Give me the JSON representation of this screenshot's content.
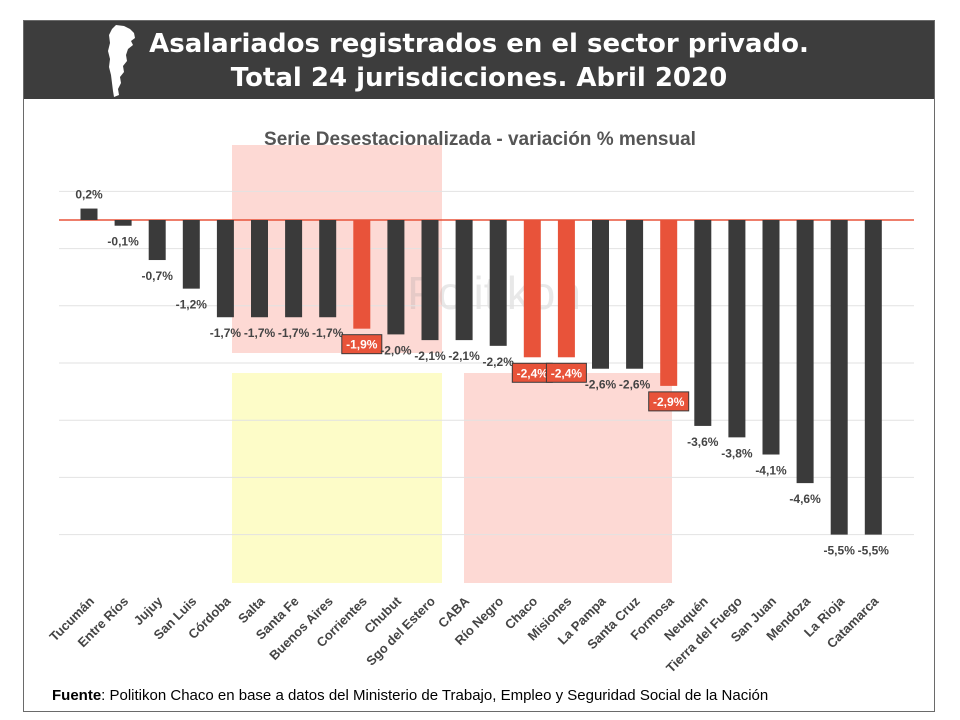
{
  "header": {
    "title_line1": "Asalariados registrados en el sector privado.",
    "title_line2": "Total 24 jurisdicciones. Abril 2020",
    "map_icon": "argentina-map-icon"
  },
  "watermark": "Politikon",
  "source": {
    "label": "Fuente",
    "text": ": Politikon Chaco en base a datos del Ministerio de Trabajo, Empleo y Seguridad Social de la Nación"
  },
  "colors": {
    "bar_default": "#3a3a3a",
    "bar_highlight": "#e8533a",
    "zero_line": "#e8533a",
    "pink_box": "#fdd9d4",
    "yellow_box": "#fdfcc8",
    "header_bg": "#3d3d3d"
  },
  "chart_data": {
    "type": "bar",
    "title": "Serie Desestacionalizada - variación % mensual",
    "xlabel": "",
    "ylabel": "",
    "categories": [
      "Tucumán",
      "Entre Ríos",
      "Jujuy",
      "San Luis",
      "Córdoba",
      "Salta",
      "Santa Fe",
      "Buenos Aires",
      "Corrientes",
      "Chubut",
      "Sgo del Estero",
      "CABA",
      "Río Negro",
      "Chaco",
      "Misiones",
      "La Pampa",
      "Santa Cruz",
      "Formosa",
      "Neuquén",
      "Tierra del Fuego",
      "San Juan",
      "Mendoza",
      "La Rioja",
      "Catamarca"
    ],
    "values": [
      0.2,
      -0.1,
      -0.7,
      -1.2,
      -1.7,
      -1.7,
      -1.7,
      -1.7,
      -1.9,
      -2.0,
      -2.1,
      -2.1,
      -2.2,
      -2.4,
      -2.4,
      -2.6,
      -2.6,
      -2.9,
      -3.6,
      -3.8,
      -4.1,
      -4.6,
      -5.5,
      -5.5
    ],
    "value_labels": [
      "0,2%",
      "-0,1%",
      "-0,7%",
      "-1,2%",
      "-1,7%",
      "-1,7%",
      "-1,7%",
      "-1,7%",
      "-1,9%",
      "-2,0%",
      "-2,1%",
      "-2,1%",
      "-2,2%",
      "-2,4%",
      "-2,4%",
      "-2,6%",
      "-2,6%",
      "-2,9%",
      "-3,6%",
      "-3,8%",
      "-4,1%",
      "-4,6%",
      "-5,5%",
      "-5,5%"
    ],
    "highlighted": [
      "Corrientes",
      "Chaco",
      "Misiones",
      "Formosa"
    ],
    "ylim": [
      -5.5,
      0.5
    ],
    "grid": true,
    "legend": "none"
  }
}
